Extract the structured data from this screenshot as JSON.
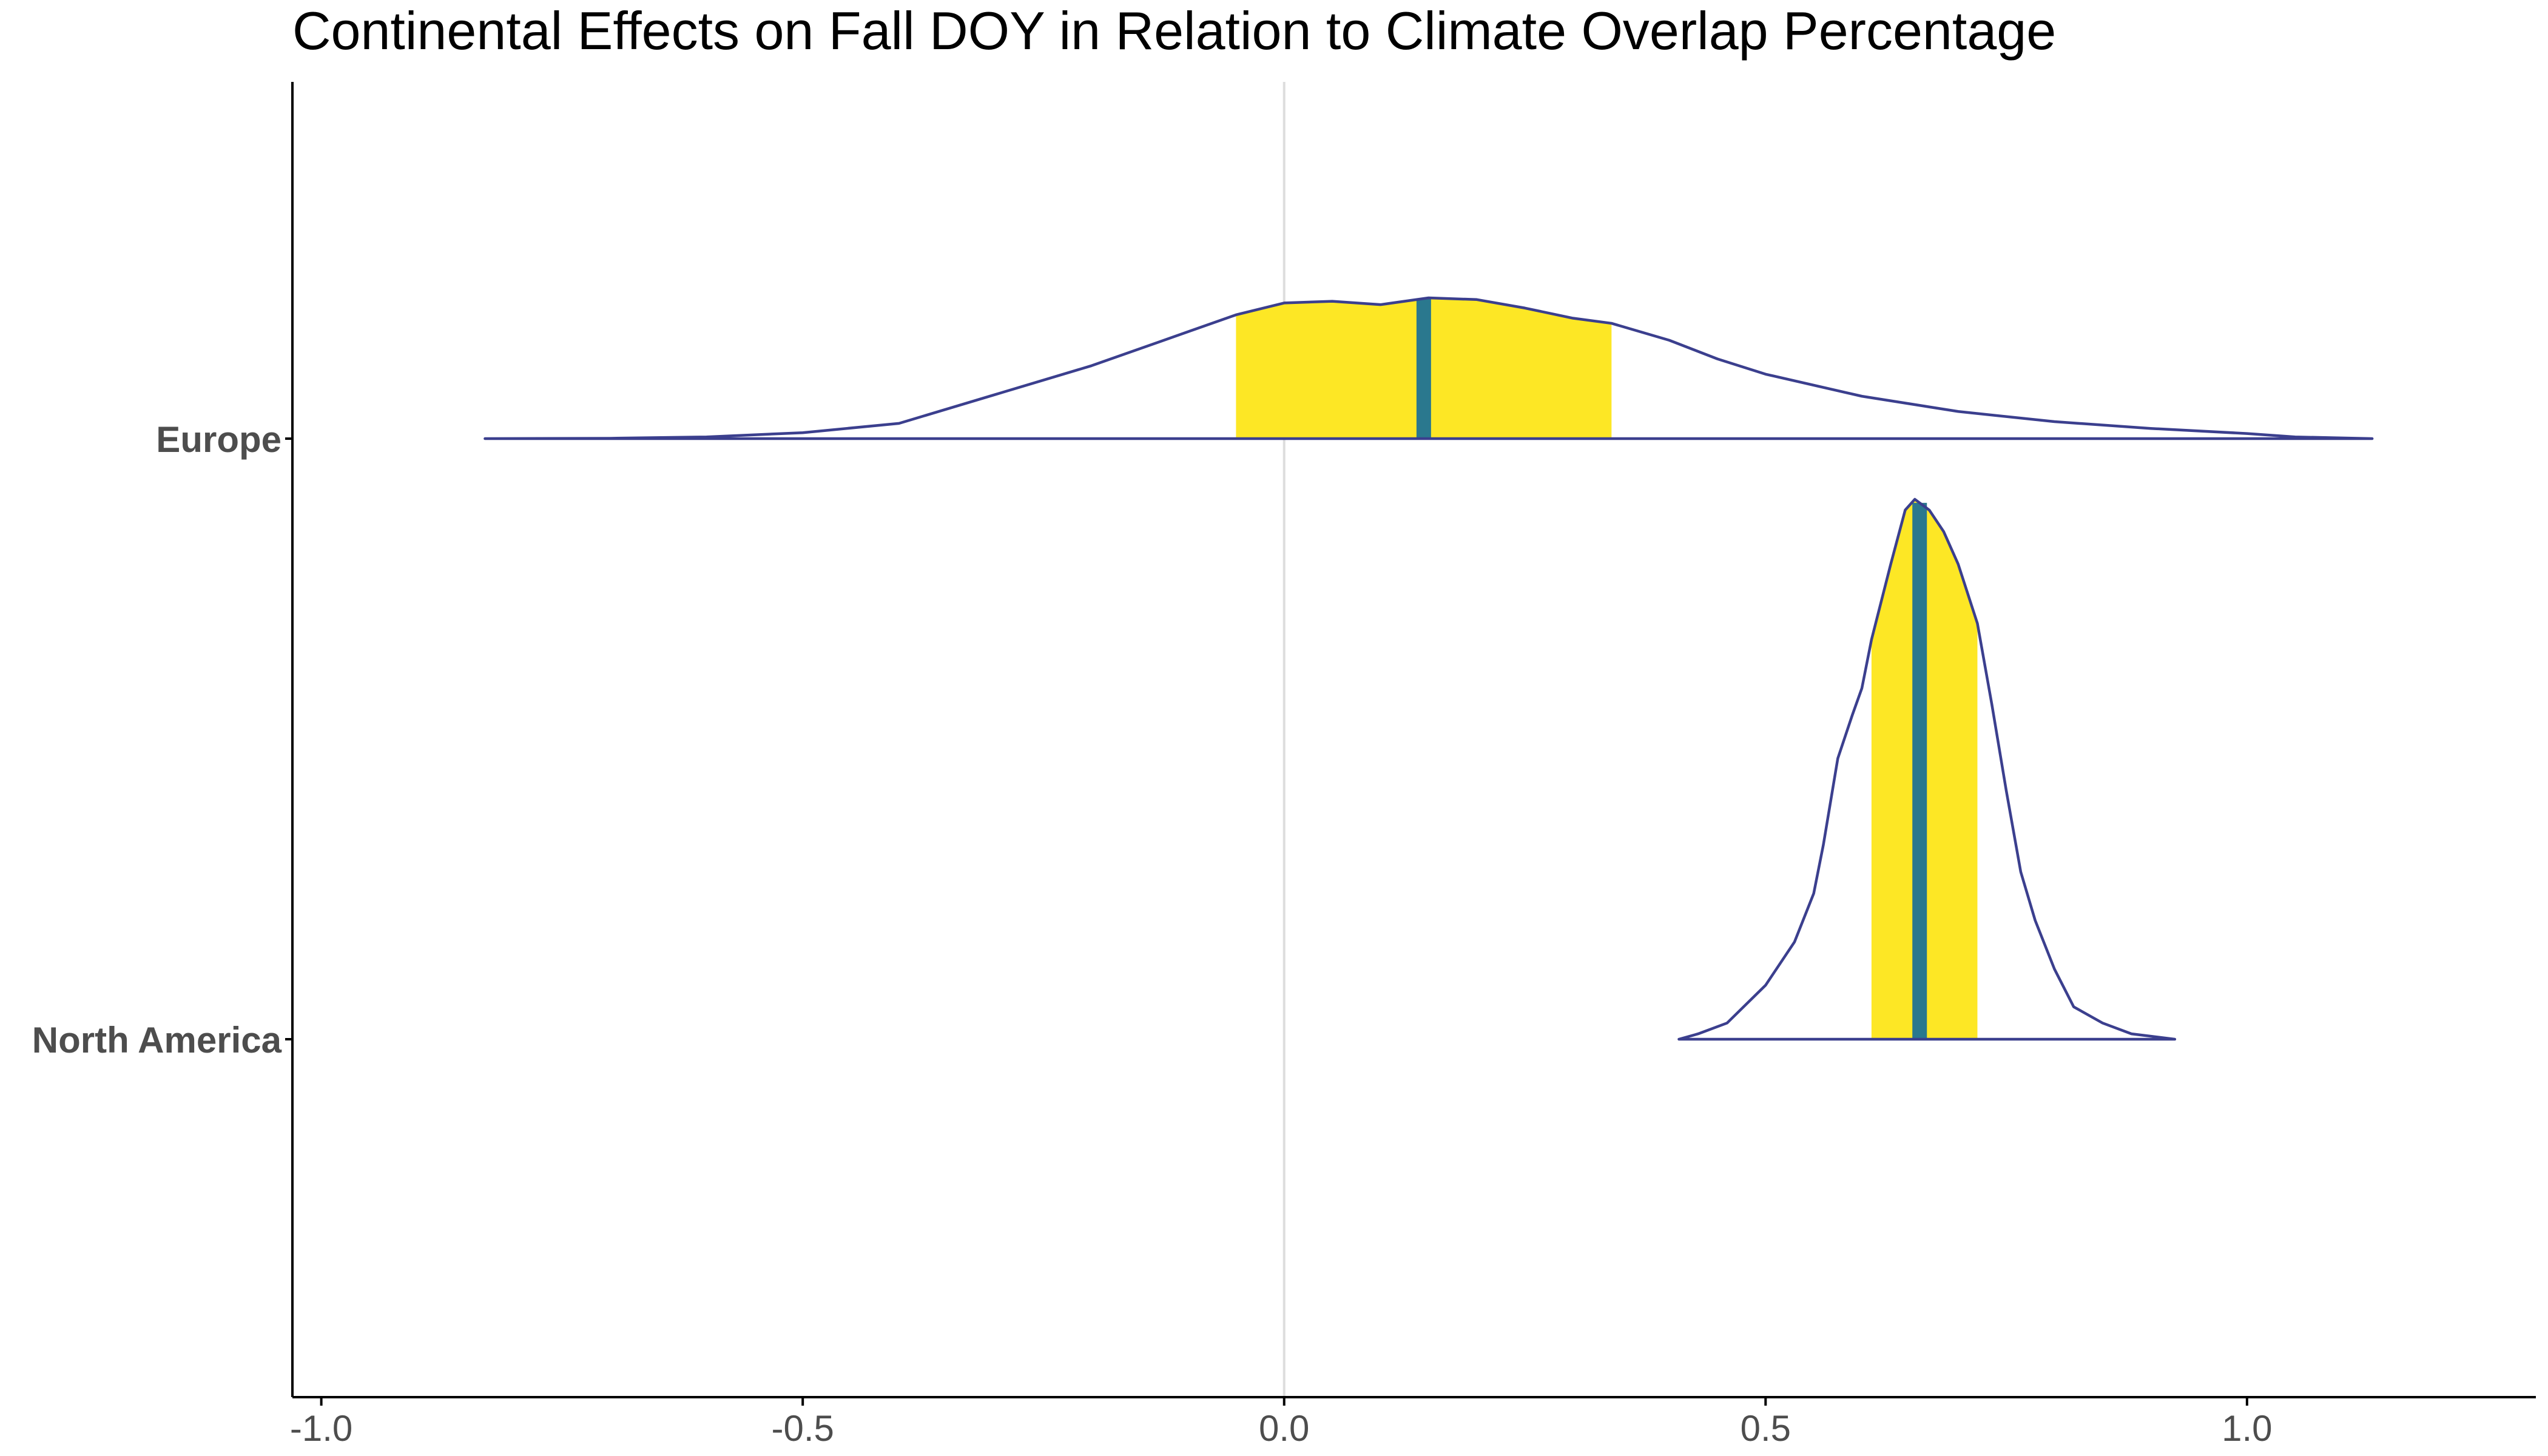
{
  "chart_data": {
    "type": "ridgeline",
    "title": "Continental Effects on Fall DOY in Relation to Climate Overlap Percentage",
    "xlabel": "",
    "ylabel": "",
    "xlim": [
      -1.03,
      1.3
    ],
    "xticks": [
      -1.0,
      -0.5,
      0.0,
      0.5,
      1.0
    ],
    "xtick_labels": [
      "-1.0",
      "-0.5",
      "0.0",
      "0.5",
      "1.0"
    ],
    "reference_line_x": 0.0,
    "grid": false,
    "legend": "none",
    "colors": {
      "outline": "#3b3f8e",
      "interval_fill": "#fde725",
      "median_line": "#2a788e",
      "reference_line": "#dddddd",
      "axis": "#000000",
      "tick_label": "#4d4d4d"
    },
    "series": [
      {
        "name": "Europe",
        "median": 0.145,
        "interval": [
          -0.05,
          0.34
        ],
        "density": [
          [
            -0.83,
            0.0
          ],
          [
            -0.7,
            0.002
          ],
          [
            -0.6,
            0.01
          ],
          [
            -0.5,
            0.035
          ],
          [
            -0.4,
            0.09
          ],
          [
            -0.3,
            0.26
          ],
          [
            -0.2,
            0.43
          ],
          [
            -0.1,
            0.63
          ],
          [
            -0.05,
            0.73
          ],
          [
            0.0,
            0.8
          ],
          [
            0.05,
            0.81
          ],
          [
            0.1,
            0.79
          ],
          [
            0.15,
            0.83
          ],
          [
            0.2,
            0.82
          ],
          [
            0.25,
            0.77
          ],
          [
            0.3,
            0.71
          ],
          [
            0.34,
            0.68
          ],
          [
            0.4,
            0.58
          ],
          [
            0.45,
            0.47
          ],
          [
            0.5,
            0.38
          ],
          [
            0.6,
            0.25
          ],
          [
            0.7,
            0.16
          ],
          [
            0.8,
            0.1
          ],
          [
            0.9,
            0.06
          ],
          [
            1.0,
            0.03
          ],
          [
            1.05,
            0.01
          ],
          [
            1.13,
            0.0
          ]
        ]
      },
      {
        "name": "North America",
        "median": 0.66,
        "interval": [
          0.61,
          0.72
        ],
        "density": [
          [
            0.41,
            0.0
          ],
          [
            0.43,
            0.01
          ],
          [
            0.46,
            0.03
          ],
          [
            0.5,
            0.1
          ],
          [
            0.53,
            0.18
          ],
          [
            0.55,
            0.27
          ],
          [
            0.56,
            0.36
          ],
          [
            0.575,
            0.52
          ],
          [
            0.59,
            0.6
          ],
          [
            0.6,
            0.65
          ],
          [
            0.61,
            0.74
          ],
          [
            0.63,
            0.88
          ],
          [
            0.645,
            0.98
          ],
          [
            0.655,
            1.0
          ],
          [
            0.67,
            0.98
          ],
          [
            0.685,
            0.94
          ],
          [
            0.7,
            0.88
          ],
          [
            0.72,
            0.77
          ],
          [
            0.735,
            0.62
          ],
          [
            0.75,
            0.46
          ],
          [
            0.765,
            0.31
          ],
          [
            0.78,
            0.22
          ],
          [
            0.8,
            0.13
          ],
          [
            0.82,
            0.06
          ],
          [
            0.85,
            0.03
          ],
          [
            0.88,
            0.01
          ],
          [
            0.925,
            0.0
          ]
        ]
      }
    ]
  }
}
